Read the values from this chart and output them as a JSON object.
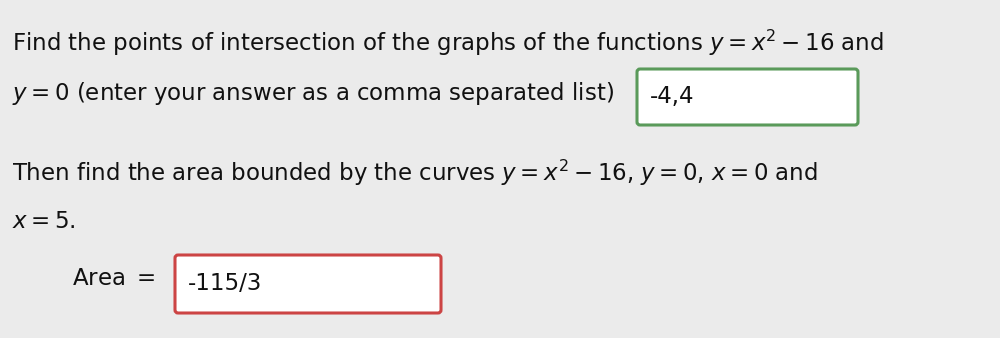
{
  "background_color": "#ebebeb",
  "line1": "Find the points of intersection of the graphs of the functions $y = x^2 - 16$ and",
  "line2_pre": "$y = 0$ (enter your answer as a comma separated list)",
  "answer1": "-4,4",
  "line3": "Then find the area bounded by the curves $y = x^2 - 16$, $y = 0$, $x = 0$ and",
  "line4": "$x = 5$.",
  "label2": "Area $=$",
  "answer2": "-115/3",
  "box1_color": "#5a9a5a",
  "box2_color": "#cc4444",
  "font_size": 16.5,
  "text_color": "#111111"
}
